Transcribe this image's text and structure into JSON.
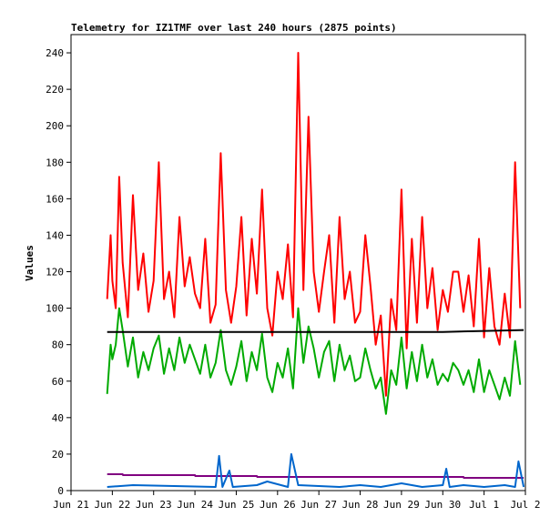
{
  "chart_data": {
    "type": "line",
    "title": "Telemetry for IZ1TMF over last 240 hours (2875 points)",
    "xlabel": "",
    "ylabel": "Values",
    "x_tick_labels": [
      "Jun 21",
      "Jun 22",
      "Jun 23",
      "Jun 24",
      "Jun 25",
      "Jun 26",
      "Jun 27",
      "Jun 28",
      "Jun 29",
      "Jun 30",
      "Jul 1",
      "Jul 2"
    ],
    "ylim": [
      0,
      250
    ],
    "y_ticks": [
      0,
      20,
      40,
      60,
      80,
      100,
      120,
      140,
      160,
      180,
      200,
      220,
      240
    ],
    "xlim": [
      "2023-06-21T00:00",
      "2023-07-02T00:00"
    ],
    "grid": false,
    "legend": "none",
    "series": [
      {
        "color": "#ff0000",
        "x": [
          "2023-06-21T21:00",
          "2023-06-21T23:00",
          "2023-06-22T00:00",
          "2023-06-22T02:00",
          "2023-06-22T04:00",
          "2023-06-22T06:00",
          "2023-06-22T09:00",
          "2023-06-22T12:00",
          "2023-06-22T15:00",
          "2023-06-22T18:00",
          "2023-06-22T21:00",
          "2023-06-23T00:00",
          "2023-06-23T03:00",
          "2023-06-23T06:00",
          "2023-06-23T09:00",
          "2023-06-23T12:00",
          "2023-06-23T15:00",
          "2023-06-23T18:00",
          "2023-06-23T21:00",
          "2023-06-24T00:00",
          "2023-06-24T03:00",
          "2023-06-24T06:00",
          "2023-06-24T09:00",
          "2023-06-24T12:00",
          "2023-06-24T15:00",
          "2023-06-24T18:00",
          "2023-06-24T21:00",
          "2023-06-25T00:00",
          "2023-06-25T03:00",
          "2023-06-25T06:00",
          "2023-06-25T09:00",
          "2023-06-25T12:00",
          "2023-06-25T15:00",
          "2023-06-25T18:00",
          "2023-06-25T21:00",
          "2023-06-26T00:00",
          "2023-06-26T03:00",
          "2023-06-26T06:00",
          "2023-06-26T09:00",
          "2023-06-26T12:00",
          "2023-06-26T15:00",
          "2023-06-26T18:00",
          "2023-06-26T21:00",
          "2023-06-27T00:00",
          "2023-06-27T03:00",
          "2023-06-27T06:00",
          "2023-06-27T09:00",
          "2023-06-27T12:00",
          "2023-06-27T15:00",
          "2023-06-27T18:00",
          "2023-06-27T21:00",
          "2023-06-28T00:00",
          "2023-06-28T03:00",
          "2023-06-28T06:00",
          "2023-06-28T09:00",
          "2023-06-28T12:00",
          "2023-06-28T15:00",
          "2023-06-28T18:00",
          "2023-06-28T21:00",
          "2023-06-29T00:00",
          "2023-06-29T03:00",
          "2023-06-29T06:00",
          "2023-06-29T09:00",
          "2023-06-29T12:00",
          "2023-06-29T15:00",
          "2023-06-29T18:00",
          "2023-06-29T21:00",
          "2023-06-30T00:00",
          "2023-06-30T03:00",
          "2023-06-30T06:00",
          "2023-06-30T09:00",
          "2023-06-30T12:00",
          "2023-06-30T15:00",
          "2023-06-30T18:00",
          "2023-06-30T21:00",
          "2023-07-01T00:00",
          "2023-07-01T03:00",
          "2023-07-01T06:00",
          "2023-07-01T09:00",
          "2023-07-01T12:00",
          "2023-07-01T15:00",
          "2023-07-01T18:00",
          "2023-07-01T21:00"
        ],
        "values": [
          105,
          140,
          115,
          100,
          172,
          125,
          95,
          162,
          110,
          130,
          98,
          115,
          180,
          105,
          120,
          95,
          150,
          112,
          128,
          108,
          100,
          138,
          92,
          102,
          185,
          110,
          92,
          112,
          150,
          96,
          138,
          108,
          165,
          100,
          85,
          120,
          105,
          135,
          95,
          240,
          110,
          205,
          120,
          98,
          120,
          140,
          92,
          150,
          105,
          120,
          92,
          98,
          140,
          112,
          80,
          96,
          52,
          105,
          88,
          165,
          78,
          138,
          92,
          150,
          100,
          122,
          88,
          110,
          98,
          120,
          120,
          98,
          118,
          90,
          138,
          84,
          122,
          90,
          80,
          108,
          84,
          180,
          100
        ],
        "markers": false
      },
      {
        "color": "#00aa00",
        "x": [
          "2023-06-21T21:00",
          "2023-06-21T23:00",
          "2023-06-22T00:00",
          "2023-06-22T02:00",
          "2023-06-22T04:00",
          "2023-06-22T06:00",
          "2023-06-22T09:00",
          "2023-06-22T12:00",
          "2023-06-22T15:00",
          "2023-06-22T18:00",
          "2023-06-22T21:00",
          "2023-06-23T00:00",
          "2023-06-23T03:00",
          "2023-06-23T06:00",
          "2023-06-23T09:00",
          "2023-06-23T12:00",
          "2023-06-23T15:00",
          "2023-06-23T18:00",
          "2023-06-23T21:00",
          "2023-06-24T00:00",
          "2023-06-24T03:00",
          "2023-06-24T06:00",
          "2023-06-24T09:00",
          "2023-06-24T12:00",
          "2023-06-24T15:00",
          "2023-06-24T18:00",
          "2023-06-24T21:00",
          "2023-06-25T00:00",
          "2023-06-25T03:00",
          "2023-06-25T06:00",
          "2023-06-25T09:00",
          "2023-06-25T12:00",
          "2023-06-25T15:00",
          "2023-06-25T18:00",
          "2023-06-25T21:00",
          "2023-06-26T00:00",
          "2023-06-26T03:00",
          "2023-06-26T06:00",
          "2023-06-26T09:00",
          "2023-06-26T12:00",
          "2023-06-26T15:00",
          "2023-06-26T18:00",
          "2023-06-26T21:00",
          "2023-06-27T00:00",
          "2023-06-27T03:00",
          "2023-06-27T06:00",
          "2023-06-27T09:00",
          "2023-06-27T12:00",
          "2023-06-27T15:00",
          "2023-06-27T18:00",
          "2023-06-27T21:00",
          "2023-06-28T00:00",
          "2023-06-28T03:00",
          "2023-06-28T06:00",
          "2023-06-28T09:00",
          "2023-06-28T12:00",
          "2023-06-28T15:00",
          "2023-06-28T18:00",
          "2023-06-28T21:00",
          "2023-06-29T00:00",
          "2023-06-29T03:00",
          "2023-06-29T06:00",
          "2023-06-29T09:00",
          "2023-06-29T12:00",
          "2023-06-29T15:00",
          "2023-06-29T18:00",
          "2023-06-29T21:00",
          "2023-06-30T00:00",
          "2023-06-30T03:00",
          "2023-06-30T06:00",
          "2023-06-30T09:00",
          "2023-06-30T12:00",
          "2023-06-30T15:00",
          "2023-06-30T18:00",
          "2023-06-30T21:00",
          "2023-07-01T00:00",
          "2023-07-01T03:00",
          "2023-07-01T06:00",
          "2023-07-01T09:00",
          "2023-07-01T12:00",
          "2023-07-01T15:00",
          "2023-07-01T18:00",
          "2023-07-01T21:00"
        ],
        "values": [
          53,
          80,
          72,
          80,
          100,
          88,
          68,
          84,
          62,
          76,
          66,
          78,
          85,
          64,
          78,
          66,
          84,
          70,
          80,
          72,
          64,
          80,
          62,
          70,
          88,
          66,
          58,
          68,
          82,
          60,
          76,
          66,
          86,
          62,
          54,
          70,
          62,
          78,
          56,
          100,
          70,
          90,
          78,
          62,
          76,
          82,
          60,
          80,
          66,
          74,
          60,
          62,
          78,
          66,
          56,
          62,
          42,
          66,
          58,
          84,
          56,
          76,
          60,
          80,
          62,
          72,
          58,
          64,
          60,
          70,
          66,
          58,
          66,
          54,
          72,
          54,
          66,
          58,
          50,
          62,
          52,
          82,
          58
        ],
        "markers": false
      },
      {
        "color": "#000000",
        "x": [
          "2023-06-21T21:00",
          "2023-06-24T00:00",
          "2023-06-27T00:00",
          "2023-06-30T00:00",
          "2023-07-01T00:00",
          "2023-07-01T23:00"
        ],
        "values": [
          87,
          87,
          87,
          87,
          87.5,
          88
        ],
        "markers": false
      },
      {
        "color": "#800080",
        "x": [
          "2023-06-21T21:00",
          "2023-06-22T06:00",
          "2023-06-22T06:10",
          "2023-06-24T00:00",
          "2023-06-24T00:10",
          "2023-06-25T12:00",
          "2023-06-25T12:10",
          "2023-06-30T12:00",
          "2023-06-30T12:10",
          "2023-07-01T23:00"
        ],
        "values": [
          9,
          9,
          8.5,
          8.5,
          8,
          8,
          7.5,
          7.5,
          7,
          7
        ],
        "markers": false
      },
      {
        "color": "#0066cc",
        "x": [
          "2023-06-21T21:00",
          "2023-06-22T12:00",
          "2023-06-24T12:00",
          "2023-06-24T14:00",
          "2023-06-24T16:00",
          "2023-06-24T20:00",
          "2023-06-24T22:00",
          "2023-06-25T12:00",
          "2023-06-25T18:00",
          "2023-06-26T06:00",
          "2023-06-26T08:00",
          "2023-06-26T12:00",
          "2023-06-27T12:00",
          "2023-06-28T00:00",
          "2023-06-28T12:00",
          "2023-06-29T00:00",
          "2023-06-29T12:00",
          "2023-06-30T00:00",
          "2023-06-30T02:00",
          "2023-06-30T04:00",
          "2023-06-30T12:00",
          "2023-07-01T00:00",
          "2023-07-01T12:00",
          "2023-07-01T18:00",
          "2023-07-01T20:00",
          "2023-07-01T23:00"
        ],
        "values": [
          2,
          3,
          2,
          19,
          2,
          11,
          2,
          3,
          5,
          2,
          20,
          3,
          2,
          3,
          2,
          4,
          2,
          3,
          12,
          2,
          3,
          2,
          3,
          2,
          16,
          2
        ],
        "markers": false
      }
    ]
  }
}
